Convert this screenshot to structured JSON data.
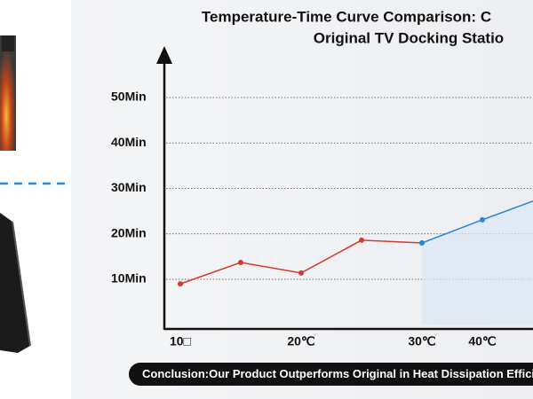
{
  "chart_data": {
    "type": "line",
    "title": "Temperature-Time Curve Comparison: C",
    "subtitle": "Original TV Docking Statio",
    "categories": [
      "10□",
      null,
      "20℃",
      null,
      "30℃",
      "40℃",
      null
    ],
    "series": [
      {
        "color": "#d23b2f",
        "values": [
          9,
          13.7,
          11.4,
          18.6,
          18,
          null,
          null
        ]
      },
      {
        "color": "#2f86d8",
        "values": [
          null,
          null,
          null,
          null,
          18,
          23.1,
          28
        ]
      }
    ],
    "ylim": [
      0,
      60
    ],
    "yticks": [
      {
        "value": 10,
        "label": "10Min"
      },
      {
        "value": 20,
        "label": "20Min"
      },
      {
        "value": 30,
        "label": "30Min"
      },
      {
        "value": 40,
        "label": "40Min"
      },
      {
        "value": 50,
        "label": "50Min"
      }
    ],
    "grid": true,
    "conclusion": "Conclusion:Our Product Outperforms Original in Heat Dissipation Efficiency,B"
  }
}
